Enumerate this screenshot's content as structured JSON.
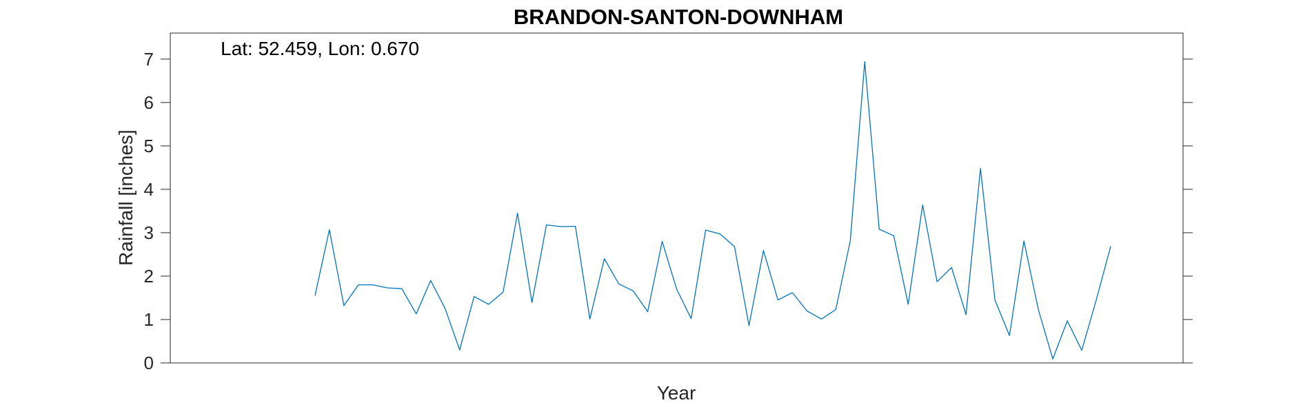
{
  "chart_data": {
    "type": "line",
    "title": "BRANDON-SANTON-DOWNHAM",
    "xlabel": "Year",
    "ylabel": "Rainfall [inches]",
    "annotation": "Lat: 52.459, Lon: 0.670",
    "x_range": [
      0,
      70
    ],
    "ylim": [
      0,
      7.6
    ],
    "yticks": [
      0,
      1,
      2,
      3,
      4,
      5,
      6,
      7
    ],
    "grid": false,
    "box": true,
    "line_color": "#0072BD",
    "series": [
      {
        "x": [
          10,
          11,
          12,
          13,
          14,
          15,
          16,
          17,
          18,
          19,
          20,
          21,
          22,
          23,
          24,
          25,
          26,
          27,
          28,
          29,
          30,
          31,
          32,
          33,
          34,
          35,
          36,
          37,
          38,
          39,
          40,
          41,
          42,
          43,
          44,
          45,
          46,
          47,
          48,
          49,
          50,
          51,
          52,
          53,
          54,
          55,
          56,
          57,
          58,
          59,
          60,
          61,
          62,
          63,
          64,
          65
        ],
        "values": [
          1.55,
          3.07,
          1.32,
          1.8,
          1.8,
          1.73,
          1.71,
          1.13,
          1.9,
          1.25,
          0.3,
          1.53,
          1.35,
          1.63,
          3.45,
          1.39,
          3.18,
          3.14,
          3.15,
          1.01,
          2.4,
          1.82,
          1.66,
          1.18,
          2.8,
          1.7,
          1.02,
          3.06,
          2.97,
          2.68,
          0.86,
          2.59,
          1.45,
          1.62,
          1.2,
          1.01,
          1.23,
          2.81,
          6.94,
          3.08,
          2.93,
          1.35,
          3.64,
          1.87,
          2.2,
          1.11,
          4.48,
          1.45,
          0.63,
          2.81,
          1.23,
          0.09,
          0.97,
          0.29,
          1.45,
          2.69
        ]
      }
    ]
  }
}
